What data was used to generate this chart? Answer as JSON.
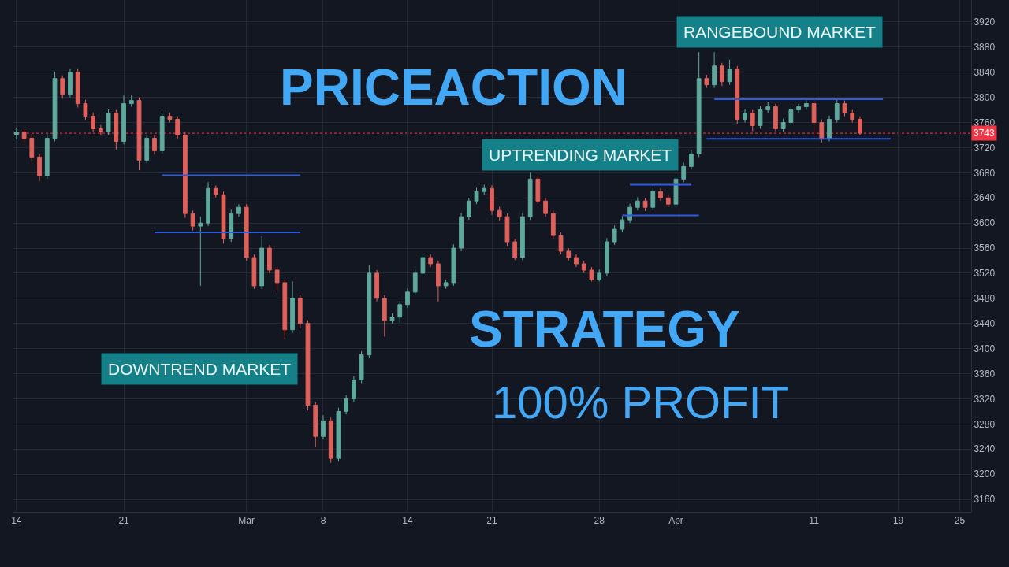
{
  "chart_data": {
    "type": "candlestick",
    "annotations": [
      "PRICEACTION",
      "STRATEGY",
      "100% PROFIT",
      "DOWNTREND MARKET",
      "UPTRENDING MARKET",
      "RANGEBOUND MARKET"
    ],
    "categories": [
      "14",
      null,
      null,
      null,
      null,
      null,
      null,
      null,
      null,
      null,
      null,
      null,
      null,
      null,
      "21",
      null,
      null,
      null,
      null,
      null,
      null,
      null,
      null,
      null,
      null,
      null,
      null,
      null,
      null,
      null,
      "Mar",
      null,
      null,
      null,
      null,
      null,
      null,
      null,
      null,
      null,
      "8",
      null,
      null,
      null,
      null,
      null,
      null,
      null,
      null,
      null,
      null,
      "14",
      null,
      null,
      null,
      null,
      null,
      null,
      null,
      null,
      null,
      null,
      "21",
      null,
      null,
      null,
      null,
      null,
      null,
      null,
      null,
      null,
      null,
      null,
      null,
      null,
      "28",
      null,
      null,
      null,
      null,
      null,
      null,
      null,
      null,
      null,
      "Apr",
      null,
      null,
      null,
      null,
      null,
      null,
      null,
      null,
      null,
      null,
      null,
      null,
      null,
      null,
      null,
      null,
      null,
      "11",
      null,
      null,
      null,
      null,
      null,
      null,
      null,
      null,
      null,
      null,
      "19",
      null,
      null,
      null,
      null,
      null,
      null,
      null,
      "25",
      null
    ],
    "ohlc": [
      [
        3740,
        3752,
        3733,
        3745
      ],
      [
        3745,
        3750,
        3728,
        3735
      ],
      [
        3735,
        3740,
        3698,
        3705
      ],
      [
        3705,
        3710,
        3667,
        3675
      ],
      [
        3675,
        3742,
        3670,
        3735
      ],
      [
        3735,
        3841,
        3730,
        3830
      ],
      [
        3830,
        3835,
        3798,
        3805
      ],
      [
        3805,
        3845,
        3800,
        3840
      ],
      [
        3840,
        3845,
        3784,
        3790
      ],
      [
        3790,
        3796,
        3764,
        3770
      ],
      [
        3770,
        3776,
        3744,
        3750
      ],
      [
        3750,
        3756,
        3739,
        3745
      ],
      [
        3745,
        3781,
        3740,
        3775
      ],
      [
        3775,
        3780,
        3717,
        3730
      ],
      [
        3730,
        3803,
        3725,
        3790
      ],
      [
        3790,
        3803,
        3785,
        3795
      ],
      [
        3795,
        3800,
        3684,
        3700
      ],
      [
        3700,
        3741,
        3695,
        3735
      ],
      [
        3735,
        3740,
        3709,
        3715
      ],
      [
        3715,
        3776,
        3710,
        3770
      ],
      [
        3770,
        3776,
        3760,
        3765
      ],
      [
        3765,
        3770,
        3734,
        3740
      ],
      [
        3740,
        3745,
        3608,
        3615
      ],
      [
        3615,
        3620,
        3588,
        3595
      ],
      [
        3595,
        3610,
        3500,
        3600
      ],
      [
        3600,
        3665,
        3595,
        3655
      ],
      [
        3655,
        3660,
        3640,
        3645
      ],
      [
        3645,
        3650,
        3567,
        3575
      ],
      [
        3575,
        3621,
        3570,
        3615
      ],
      [
        3615,
        3630,
        3610,
        3625
      ],
      [
        3625,
        3630,
        3540,
        3545
      ],
      [
        3545,
        3550,
        3495,
        3500
      ],
      [
        3500,
        3579,
        3495,
        3560
      ],
      [
        3560,
        3565,
        3520,
        3525
      ],
      [
        3525,
        3530,
        3491,
        3505
      ],
      [
        3505,
        3510,
        3415,
        3430
      ],
      [
        3430,
        3507,
        3425,
        3480
      ],
      [
        3480,
        3485,
        3432,
        3440
      ],
      [
        3440,
        3445,
        3302,
        3310
      ],
      [
        3310,
        3315,
        3243,
        3260
      ],
      [
        3260,
        3294,
        3255,
        3285
      ],
      [
        3285,
        3290,
        3218,
        3225
      ],
      [
        3225,
        3306,
        3220,
        3300
      ],
      [
        3300,
        3326,
        3295,
        3320
      ],
      [
        3320,
        3356,
        3315,
        3350
      ],
      [
        3350,
        3396,
        3345,
        3390
      ],
      [
        3390,
        3533,
        3385,
        3520
      ],
      [
        3520,
        3525,
        3475,
        3480
      ],
      [
        3480,
        3485,
        3419,
        3445
      ],
      [
        3445,
        3456,
        3440,
        3450
      ],
      [
        3450,
        3476,
        3441,
        3470
      ],
      [
        3470,
        3496,
        3465,
        3490
      ],
      [
        3490,
        3526,
        3485,
        3520
      ],
      [
        3520,
        3550,
        3515,
        3545
      ],
      [
        3545,
        3550,
        3530,
        3535
      ],
      [
        3535,
        3540,
        3475,
        3500
      ],
      [
        3500,
        3510,
        3495,
        3505
      ],
      [
        3505,
        3566,
        3500,
        3560
      ],
      [
        3560,
        3616,
        3555,
        3610
      ],
      [
        3610,
        3640,
        3605,
        3635
      ],
      [
        3635,
        3656,
        3630,
        3650
      ],
      [
        3650,
        3661,
        3645,
        3655
      ],
      [
        3655,
        3660,
        3613,
        3620
      ],
      [
        3620,
        3626,
        3604,
        3610
      ],
      [
        3610,
        3615,
        3563,
        3570
      ],
      [
        3570,
        3575,
        3541,
        3545
      ],
      [
        3545,
        3616,
        3541,
        3610
      ],
      [
        3610,
        3680,
        3605,
        3670
      ],
      [
        3670,
        3675,
        3630,
        3635
      ],
      [
        3635,
        3640,
        3610,
        3615
      ],
      [
        3615,
        3620,
        3575,
        3580
      ],
      [
        3580,
        3585,
        3550,
        3555
      ],
      [
        3555,
        3560,
        3540,
        3545
      ],
      [
        3545,
        3550,
        3530,
        3535
      ],
      [
        3535,
        3540,
        3520,
        3525
      ],
      [
        3525,
        3530,
        3507,
        3510
      ],
      [
        3510,
        3526,
        3507,
        3520
      ],
      [
        3520,
        3576,
        3515,
        3570
      ],
      [
        3570,
        3596,
        3565,
        3590
      ],
      [
        3590,
        3611,
        3585,
        3605
      ],
      [
        3605,
        3631,
        3600,
        3625
      ],
      [
        3625,
        3641,
        3620,
        3635
      ],
      [
        3635,
        3640,
        3619,
        3625
      ],
      [
        3625,
        3656,
        3620,
        3650
      ],
      [
        3650,
        3655,
        3635,
        3640
      ],
      [
        3640,
        3645,
        3625,
        3630
      ],
      [
        3630,
        3676,
        3625,
        3670
      ],
      [
        3670,
        3696,
        3665,
        3690
      ],
      [
        3690,
        3716,
        3685,
        3710
      ],
      [
        3710,
        3872,
        3705,
        3830
      ],
      [
        3830,
        3836,
        3815,
        3820
      ],
      [
        3820,
        3872,
        3815,
        3850
      ],
      [
        3850,
        3855,
        3818,
        3825
      ],
      [
        3825,
        3860,
        3820,
        3845
      ],
      [
        3845,
        3850,
        3758,
        3765
      ],
      [
        3765,
        3781,
        3760,
        3775
      ],
      [
        3775,
        3780,
        3746,
        3755
      ],
      [
        3755,
        3786,
        3750,
        3780
      ],
      [
        3780,
        3793,
        3775,
        3785
      ],
      [
        3785,
        3790,
        3746,
        3750
      ],
      [
        3750,
        3766,
        3745,
        3760
      ],
      [
        3760,
        3786,
        3755,
        3780
      ],
      [
        3780,
        3790,
        3775,
        3785
      ],
      [
        3785,
        3795,
        3780,
        3790
      ],
      [
        3790,
        3795,
        3739,
        3760
      ],
      [
        3760,
        3765,
        3728,
        3735
      ],
      [
        3735,
        3771,
        3730,
        3765
      ],
      [
        3765,
        3796,
        3760,
        3790
      ],
      [
        3790,
        3795,
        3770,
        3775
      ],
      [
        3775,
        3780,
        3760,
        3765
      ],
      [
        3765,
        3770,
        3740,
        3743
      ],
      null,
      null,
      null,
      null,
      null,
      null,
      null,
      null,
      null,
      null,
      null,
      null,
      null,
      null
    ],
    "series": [
      {
        "type": "line",
        "color": "#2f5be0",
        "values": [
          null,
          null,
          null,
          null,
          null,
          null,
          null,
          null,
          null,
          null,
          null,
          null,
          null,
          null,
          null,
          null,
          null,
          null,
          null,
          3676,
          3676,
          3676,
          3676,
          3676,
          3676,
          3676,
          3676,
          3676,
          3676,
          3676,
          3676,
          3676,
          3676,
          3676,
          3676,
          3676,
          3676,
          3676,
          null,
          null,
          null,
          null,
          null,
          null,
          null,
          null,
          null,
          null,
          null,
          null,
          null,
          null,
          null,
          null,
          null,
          null,
          null,
          null,
          null,
          null,
          null,
          null,
          null,
          null,
          null,
          null,
          null,
          null,
          null,
          null,
          null,
          null,
          null,
          null,
          null,
          null,
          null,
          null,
          null,
          null,
          null,
          null,
          null,
          null,
          null,
          null,
          null,
          null,
          null,
          null,
          null,
          null,
          null,
          null,
          null,
          null,
          null,
          null,
          null,
          null,
          null,
          null,
          null,
          null,
          null,
          null,
          null,
          null,
          null,
          null,
          null,
          null,
          null,
          null,
          null,
          null,
          null,
          null,
          null,
          null,
          null,
          null,
          null,
          null,
          null
        ]
      },
      {
        "type": "line",
        "color": "#2f5be0",
        "values": [
          null,
          null,
          null,
          null,
          null,
          null,
          null,
          null,
          null,
          null,
          null,
          null,
          null,
          null,
          null,
          null,
          null,
          null,
          3585,
          3585,
          3585,
          3585,
          3585,
          3585,
          3585,
          3585,
          3585,
          3585,
          3585,
          3585,
          3585,
          3585,
          3585,
          3585,
          3585,
          3585,
          3585,
          3585,
          null,
          null,
          null,
          null,
          null,
          null,
          null,
          null,
          null,
          null,
          null,
          null,
          null,
          null,
          null,
          null,
          null,
          null,
          null,
          null,
          null,
          null,
          null,
          null,
          null,
          null,
          null,
          null,
          null,
          null,
          null,
          null,
          null,
          null,
          null,
          null,
          null,
          null,
          null,
          null,
          null,
          null,
          null,
          null,
          null,
          null,
          null,
          null,
          null,
          null,
          null,
          null,
          null,
          null,
          null,
          null,
          null,
          null,
          null,
          null,
          null,
          null,
          null,
          null,
          null,
          null,
          null,
          null,
          null,
          null,
          null,
          null,
          null,
          null,
          null,
          null,
          null,
          null,
          null,
          null,
          null,
          null,
          null,
          null,
          null,
          null,
          null
        ]
      },
      {
        "type": "line",
        "color": "#2f5be0",
        "values": [
          null,
          null,
          null,
          null,
          null,
          null,
          null,
          null,
          null,
          null,
          null,
          null,
          null,
          null,
          null,
          null,
          null,
          null,
          null,
          null,
          null,
          null,
          null,
          null,
          null,
          null,
          null,
          null,
          null,
          null,
          null,
          null,
          null,
          null,
          null,
          null,
          null,
          null,
          null,
          null,
          null,
          null,
          null,
          null,
          null,
          null,
          null,
          null,
          null,
          null,
          null,
          null,
          null,
          null,
          null,
          null,
          null,
          null,
          null,
          null,
          null,
          null,
          null,
          null,
          null,
          null,
          null,
          null,
          null,
          null,
          null,
          null,
          null,
          null,
          null,
          null,
          null,
          null,
          null,
          null,
          3661,
          3661,
          3661,
          3661,
          3661,
          3661,
          3661,
          3661,
          3661,
          null,
          null,
          null,
          null,
          null,
          null,
          null,
          null,
          null,
          null,
          null,
          null,
          null,
          null,
          null,
          null,
          null,
          null,
          null,
          null,
          null,
          null,
          null,
          null,
          null,
          null,
          null,
          null,
          null,
          null,
          null,
          null,
          null,
          null,
          null,
          null
        ]
      },
      {
        "type": "line",
        "color": "#2f5be0",
        "values": [
          null,
          null,
          null,
          null,
          null,
          null,
          null,
          null,
          null,
          null,
          null,
          null,
          null,
          null,
          null,
          null,
          null,
          null,
          null,
          null,
          null,
          null,
          null,
          null,
          null,
          null,
          null,
          null,
          null,
          null,
          null,
          null,
          null,
          null,
          null,
          null,
          null,
          null,
          null,
          null,
          null,
          null,
          null,
          null,
          null,
          null,
          null,
          null,
          null,
          null,
          null,
          null,
          null,
          null,
          null,
          null,
          null,
          null,
          null,
          null,
          null,
          null,
          null,
          null,
          null,
          null,
          null,
          null,
          null,
          null,
          null,
          null,
          null,
          null,
          null,
          null,
          null,
          null,
          null,
          3612,
          3612,
          3612,
          3612,
          3612,
          3612,
          3612,
          3612,
          3612,
          3612,
          3612,
          null,
          null,
          null,
          null,
          null,
          null,
          null,
          null,
          null,
          null,
          null,
          null,
          null,
          null,
          null,
          null,
          null,
          null,
          null,
          null,
          null,
          null,
          null,
          null,
          null,
          null,
          null,
          null,
          null,
          null,
          null,
          null,
          null,
          null,
          null
        ]
      },
      {
        "type": "line",
        "color": "#2f5be0",
        "values": [
          null,
          null,
          null,
          null,
          null,
          null,
          null,
          null,
          null,
          null,
          null,
          null,
          null,
          null,
          null,
          null,
          null,
          null,
          null,
          null,
          null,
          null,
          null,
          null,
          null,
          null,
          null,
          null,
          null,
          null,
          null,
          null,
          null,
          null,
          null,
          null,
          null,
          null,
          null,
          null,
          null,
          null,
          null,
          null,
          null,
          null,
          null,
          null,
          null,
          null,
          null,
          null,
          null,
          null,
          null,
          null,
          null,
          null,
          null,
          null,
          null,
          null,
          null,
          null,
          null,
          null,
          null,
          null,
          null,
          null,
          null,
          null,
          null,
          null,
          null,
          null,
          null,
          null,
          null,
          null,
          null,
          null,
          null,
          null,
          null,
          null,
          null,
          null,
          null,
          null,
          null,
          3797,
          3797,
          3797,
          3797,
          3797,
          3797,
          3797,
          3797,
          3797,
          3797,
          3797,
          3797,
          3797,
          3797,
          3797,
          3797,
          3797,
          3797,
          3797,
          3797,
          3797,
          3797,
          3797,
          null,
          null,
          null,
          null,
          null,
          null,
          null,
          null,
          null,
          null,
          null
        ]
      },
      {
        "type": "line",
        "color": "#2f5be0",
        "values": [
          null,
          null,
          null,
          null,
          null,
          null,
          null,
          null,
          null,
          null,
          null,
          null,
          null,
          null,
          null,
          null,
          null,
          null,
          null,
          null,
          null,
          null,
          null,
          null,
          null,
          null,
          null,
          null,
          null,
          null,
          null,
          null,
          null,
          null,
          null,
          null,
          null,
          null,
          null,
          null,
          null,
          null,
          null,
          null,
          null,
          null,
          null,
          null,
          null,
          null,
          null,
          null,
          null,
          null,
          null,
          null,
          null,
          null,
          null,
          null,
          null,
          null,
          null,
          null,
          null,
          null,
          null,
          null,
          null,
          null,
          null,
          null,
          null,
          null,
          null,
          null,
          null,
          null,
          null,
          null,
          null,
          null,
          null,
          null,
          null,
          null,
          null,
          null,
          null,
          null,
          3734,
          3734,
          3734,
          3734,
          3734,
          3734,
          3734,
          3734,
          3734,
          3734,
          3734,
          3734,
          3734,
          3734,
          3734,
          3734,
          3734,
          3734,
          3734,
          3734,
          3734,
          3734,
          3734,
          3734,
          3734,
          null,
          null,
          null,
          null,
          null,
          null,
          null,
          null,
          null,
          null
        ]
      }
    ],
    "ref_lines": [
      {
        "axis": "y",
        "value": 3743,
        "label": "3743",
        "color": "#f23645",
        "line_style": "dotted"
      }
    ],
    "ylim": [
      3140,
      3955
    ],
    "yticks": [
      3160,
      3200,
      3240,
      3280,
      3320,
      3360,
      3400,
      3440,
      3480,
      3520,
      3560,
      3600,
      3640,
      3680,
      3720,
      3760,
      3800,
      3840,
      3880,
      3920
    ],
    "grid": true
  }
}
